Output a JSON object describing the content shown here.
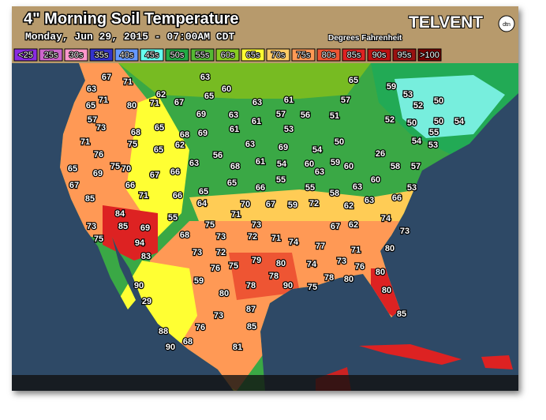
{
  "header": {
    "title": "4\" Morning Soil Temperature",
    "subtitle": "Monday, Jun 29, 2015 - 07:00AM CDT",
    "units": "Degrees Fahrenheit",
    "brand": "TELVENT",
    "brand_badge": "dtn"
  },
  "legend": [
    {
      "label": "<25",
      "color": "#8a2be2"
    },
    {
      "label": "25s",
      "color": "#cc66cc"
    },
    {
      "label": "30s",
      "color": "#ff99cc"
    },
    {
      "label": "35s",
      "color": "#3333cc"
    },
    {
      "label": "40s",
      "color": "#6699ff"
    },
    {
      "label": "45s",
      "color": "#66ffee"
    },
    {
      "label": "50s",
      "color": "#22aa44"
    },
    {
      "label": "55s",
      "color": "#55b833"
    },
    {
      "label": "60s",
      "color": "#88cc22"
    },
    {
      "label": "65s",
      "color": "#ffff33"
    },
    {
      "label": "70s",
      "color": "#ffcc66"
    },
    {
      "label": "75s",
      "color": "#ff9955"
    },
    {
      "label": "80s",
      "color": "#ee5533"
    },
    {
      "label": "85s",
      "color": "#dd2222"
    },
    {
      "label": "90s",
      "color": "#bb1111"
    },
    {
      "label": "95s",
      "color": "#991111"
    },
    {
      "label": ">100",
      "color": "#770000"
    }
  ],
  "stations": [
    67,
    71,
    63,
    65,
    59,
    53,
    63,
    65,
    71,
    80,
    71,
    62,
    67,
    65,
    60,
    63,
    61,
    57,
    52,
    57,
    69,
    63,
    61,
    57,
    56,
    51,
    50,
    52,
    50,
    50,
    54,
    73,
    68,
    65,
    68,
    69,
    61,
    53,
    55,
    71,
    75,
    62,
    63,
    69,
    54,
    50,
    54,
    65,
    56,
    61,
    54,
    60,
    26,
    53,
    76,
    75,
    70,
    63,
    68,
    58,
    57,
    65,
    69,
    67,
    66,
    63,
    59,
    60,
    67,
    66,
    71,
    55,
    60,
    55,
    66,
    65,
    65,
    66,
    53,
    85,
    64,
    58,
    63,
    62,
    63,
    66,
    70,
    67,
    71,
    59,
    72,
    73,
    84,
    85,
    69,
    55,
    75,
    73,
    74,
    67,
    62,
    94,
    68,
    73,
    72,
    71,
    74,
    73,
    75,
    83,
    73,
    72,
    77,
    71,
    80,
    79,
    75,
    76,
    80,
    74,
    73,
    76,
    80,
    90,
    59,
    78,
    78,
    90,
    75,
    78,
    80,
    29,
    80,
    80,
    87,
    73,
    85,
    76,
    85,
    88,
    90,
    68,
    81
  ]
}
